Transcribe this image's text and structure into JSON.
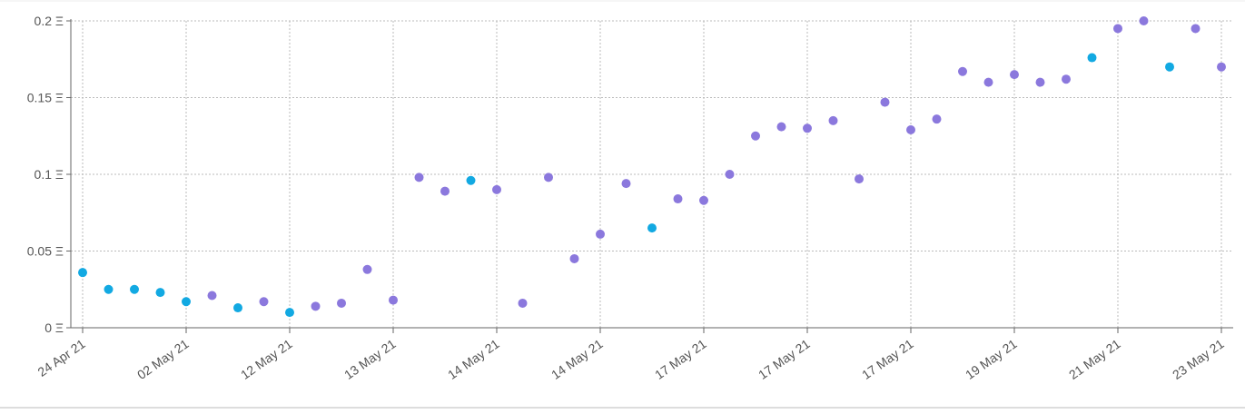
{
  "chart_data": {
    "type": "scatter",
    "categories": [
      "24 Apr 21",
      null,
      null,
      null,
      "02 May 21",
      null,
      null,
      null,
      "12 May 21",
      null,
      null,
      null,
      "13 May 21",
      null,
      null,
      null,
      "14 May 21",
      null,
      null,
      null,
      "14 May 21",
      null,
      null,
      null,
      "17 May 21",
      null,
      null,
      null,
      "17 May 21",
      null,
      null,
      null,
      "17 May 21",
      null,
      null,
      null,
      "19 May 21",
      null,
      null,
      null,
      "21 May 21",
      null,
      null,
      null,
      "23 May 21"
    ],
    "values": [
      0.036,
      0.025,
      0.025,
      0.023,
      0.017,
      0.021,
      0.013,
      0.017,
      0.01,
      0.014,
      0.016,
      0.038,
      0.018,
      0.098,
      0.089,
      0.096,
      0.09,
      0.016,
      0.098,
      0.045,
      0.061,
      0.094,
      0.065,
      0.084,
      0.083,
      0.1,
      0.125,
      0.131,
      0.13,
      0.135,
      0.097,
      0.147,
      0.129,
      0.136,
      0.167,
      0.16,
      0.165,
      0.16,
      0.162,
      0.176,
      0.195,
      0.2,
      0.17,
      0.195,
      0.17
    ],
    "colors": [
      "#12a9e2",
      "#12a9e2",
      "#12a9e2",
      "#12a9e2",
      "#12a9e2",
      "#8b78dd",
      "#12a9e2",
      "#8b78dd",
      "#12a9e2",
      "#8b78dd",
      "#8b78dd",
      "#8b78dd",
      "#8b78dd",
      "#8b78dd",
      "#8b78dd",
      "#12a9e2",
      "#8b78dd",
      "#8b78dd",
      "#8b78dd",
      "#8b78dd",
      "#8b78dd",
      "#8b78dd",
      "#12a9e2",
      "#8b78dd",
      "#8b78dd",
      "#8b78dd",
      "#8b78dd",
      "#8b78dd",
      "#8b78dd",
      "#8b78dd",
      "#8b78dd",
      "#8b78dd",
      "#8b78dd",
      "#8b78dd",
      "#8b78dd",
      "#8b78dd",
      "#8b78dd",
      "#8b78dd",
      "#8b78dd",
      "#12a9e2",
      "#8b78dd",
      "#8b78dd",
      "#12a9e2",
      "#8b78dd",
      "#8b78dd"
    ],
    "ylim": [
      0,
      0.2
    ],
    "yticks": [
      {
        "value": 0,
        "label": "0 Ξ"
      },
      {
        "value": 0.05,
        "label": "0.05 Ξ"
      },
      {
        "value": 0.1,
        "label": "0.1 Ξ"
      },
      {
        "value": 0.15,
        "label": "0.15 Ξ"
      },
      {
        "value": 0.2,
        "label": "0.2 Ξ"
      }
    ],
    "grid": true
  }
}
